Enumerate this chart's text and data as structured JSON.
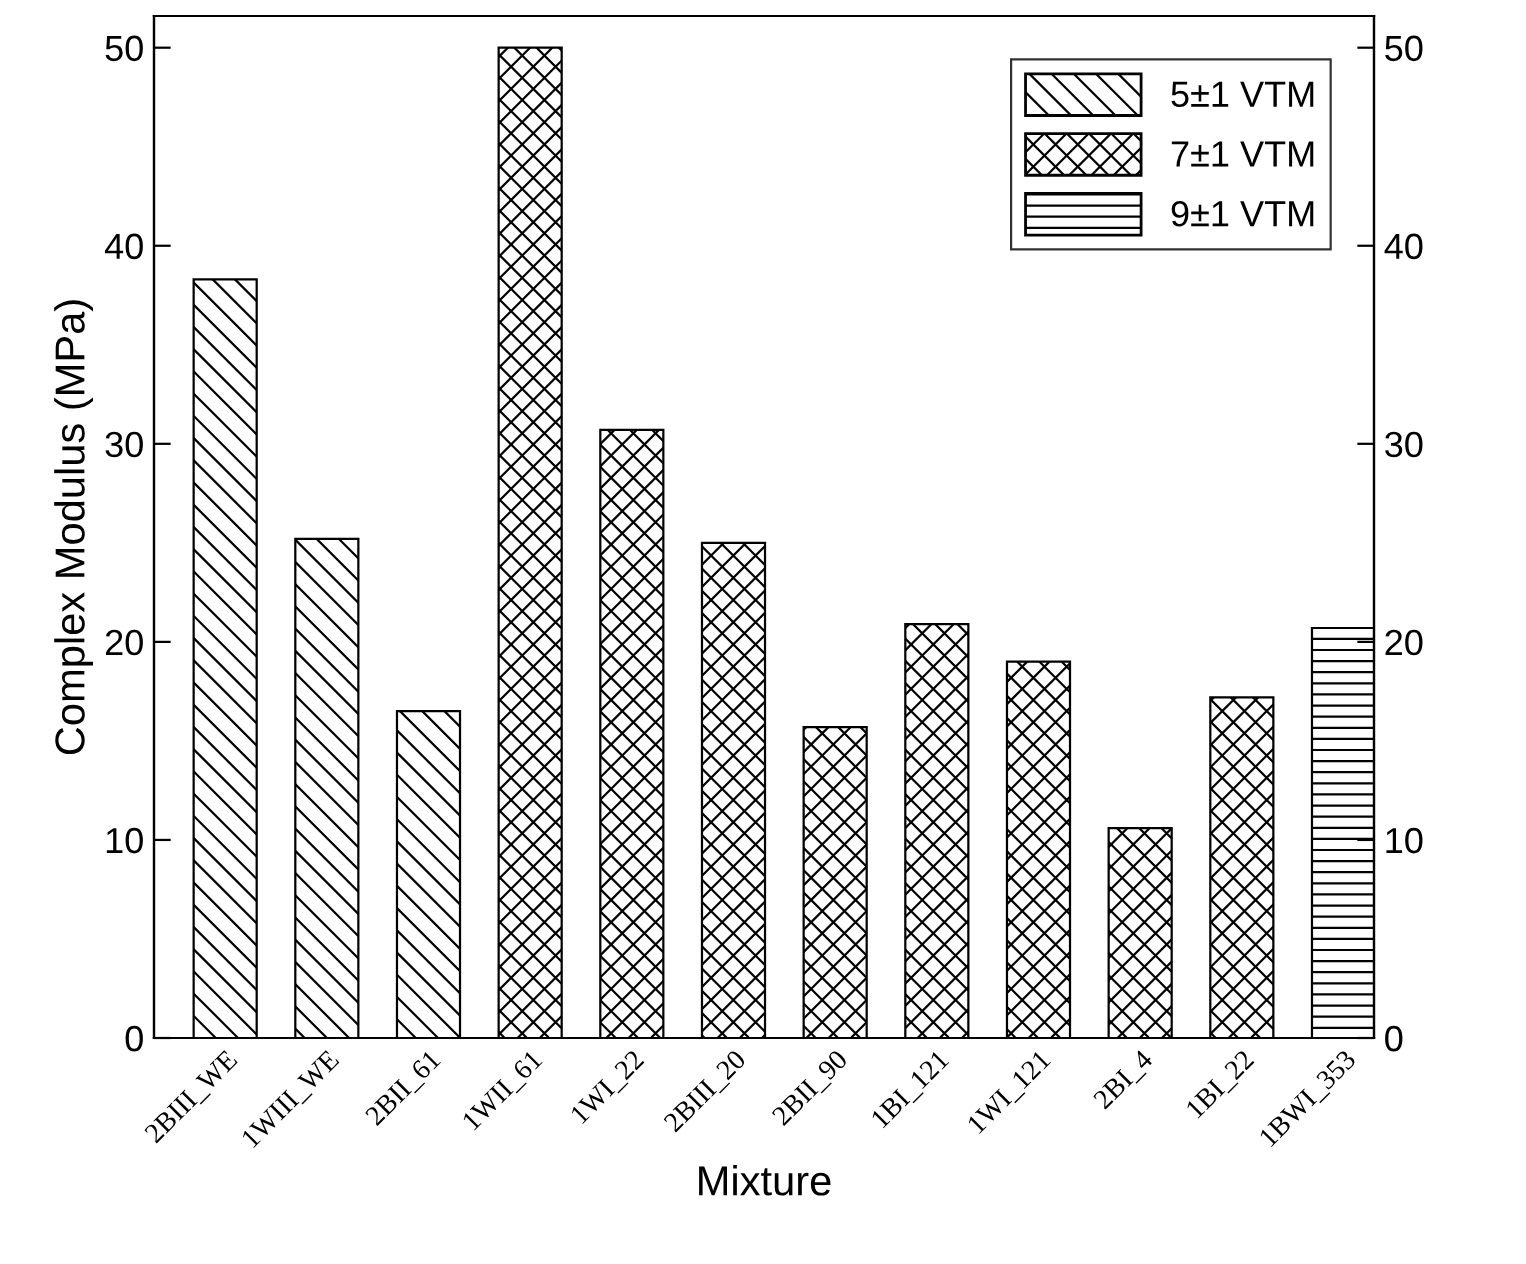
{
  "chart_data": {
    "type": "bar",
    "xlabel": "Mixture",
    "ylabel": "Complex Modulus (MPa)",
    "categories": [
      "2BIII_WE",
      "1WIII_WE",
      "2BII_61",
      "1WII_61",
      "1WI_22",
      "2BIII_20",
      "2BII_90",
      "1BI_121",
      "1WI_121",
      "2BI_4",
      "1BI_22",
      "1BWI_353"
    ],
    "series": [
      {
        "name": "5±1 VTM",
        "color": "#000000",
        "values": [
          38.3,
          25.2,
          16.5,
          null,
          null,
          null,
          null,
          null,
          null,
          null,
          null,
          null
        ]
      },
      {
        "name": "7±1 VTM",
        "color": "#000000",
        "values": [
          null,
          null,
          null,
          50.0,
          30.7,
          25.0,
          15.7,
          20.9,
          19.0,
          10.6,
          17.2,
          null
        ]
      },
      {
        "name": "9±1 VTM",
        "color": "#000000",
        "values": [
          null,
          null,
          null,
          null,
          null,
          null,
          null,
          null,
          null,
          null,
          null,
          20.7
        ]
      }
    ],
    "ylim": [
      0,
      51.6
    ],
    "yticks": [
      0,
      10,
      20,
      30,
      40,
      50
    ],
    "y2lim": [
      0,
      51.6
    ],
    "y2ticks": [
      0,
      10,
      20,
      30,
      40,
      50
    ],
    "legend": "top right",
    "grid": false
  }
}
